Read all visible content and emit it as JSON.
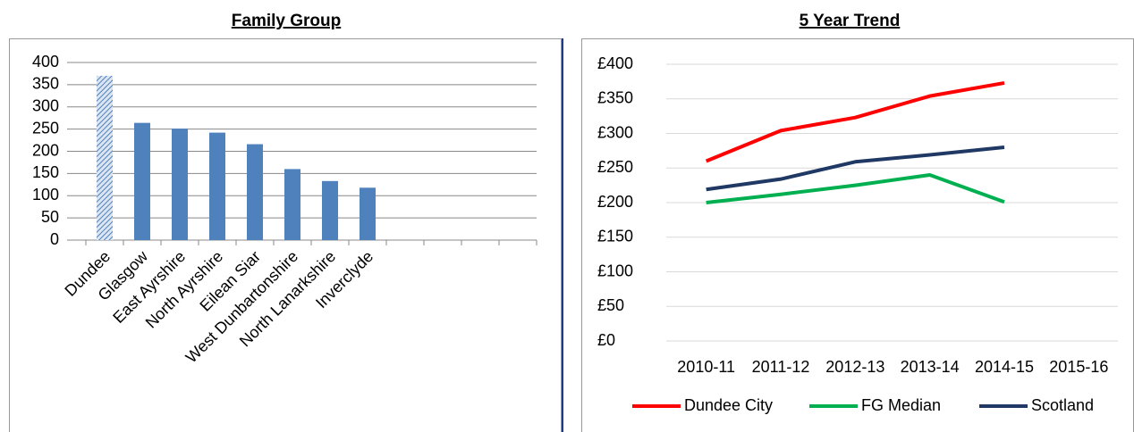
{
  "chart_data": [
    {
      "type": "bar",
      "title": "Family Group",
      "categories": [
        "Dundee",
        "Glasgow",
        "East Ayrshire",
        "North Ayrshire",
        "Eilean Siar",
        "West Dunbartonshire",
        "North Lanarkshire",
        "Inverclyde",
        null,
        null,
        null,
        null
      ],
      "values": [
        370,
        264,
        251,
        242,
        216,
        160,
        133,
        118,
        null,
        null,
        null,
        null
      ],
      "color": "#4f81bd",
      "hatched_index": 0,
      "ylim": [
        0,
        400
      ],
      "yticks": [
        0,
        50,
        100,
        150,
        200,
        250,
        300,
        350,
        400
      ],
      "grid": true
    },
    {
      "type": "line",
      "title": "5 Year Trend",
      "categories": [
        "2010-11",
        "2011-12",
        "2012-13",
        "2013-14",
        "2014-15",
        "2015-16"
      ],
      "series": [
        {
          "name": "Dundee City",
          "color": "#ff0000",
          "values": [
            260,
            304,
            323,
            354,
            373,
            null
          ]
        },
        {
          "name": "FG Median",
          "color": "#00b050",
          "values": [
            200,
            212,
            225,
            240,
            201,
            null
          ]
        },
        {
          "name": "Scotland",
          "color": "#1f3864",
          "values": [
            219,
            234,
            259,
            269,
            280,
            null
          ]
        }
      ],
      "ylim": [
        0,
        400
      ],
      "yticks": [
        {
          "value": 0,
          "label": "£0"
        },
        {
          "value": 50,
          "label": "£50"
        },
        {
          "value": 100,
          "label": "£100"
        },
        {
          "value": 150,
          "label": "£150"
        },
        {
          "value": 200,
          "label": "£200"
        },
        {
          "value": 250,
          "label": "£250"
        },
        {
          "value": 300,
          "label": "£300"
        },
        {
          "value": 350,
          "label": "£350"
        },
        {
          "value": 400,
          "label": "£400"
        }
      ],
      "grid": true,
      "legend": "bottom"
    }
  ]
}
